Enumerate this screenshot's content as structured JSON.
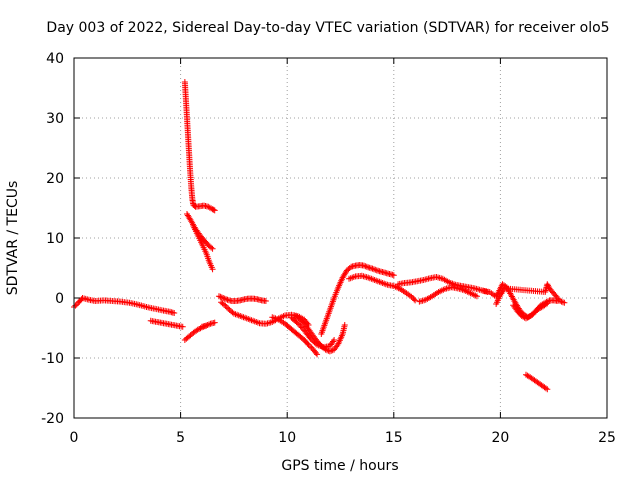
{
  "chart_data": {
    "type": "scatter",
    "title": "Day 003 of 2022, Sidereal Day-to-day VTEC variation (SDTVAR) for receiver olo5",
    "xlabel": "GPS time / hours",
    "ylabel": "SDTVAR / TECUs",
    "xlim": [
      0,
      25
    ],
    "ylim": [
      -20,
      40
    ],
    "xticks": [
      "0",
      "5",
      "10",
      "15",
      "20",
      "25"
    ],
    "yticks": [
      "-20",
      "-10",
      "0",
      "10",
      "20",
      "30",
      "40"
    ],
    "grid": true,
    "marker": "+",
    "marker_color": "#ff0000",
    "series": [
      {
        "name": "early-flat",
        "points": [
          [
            0,
            -1.5
          ],
          [
            0.2,
            -0.8
          ],
          [
            0.4,
            0
          ],
          [
            0.7,
            -0.3
          ],
          [
            1.0,
            -0.5
          ],
          [
            1.4,
            -0.4
          ],
          [
            1.8,
            -0.5
          ],
          [
            2.2,
            -0.6
          ],
          [
            2.6,
            -0.8
          ],
          [
            3.0,
            -1.1
          ],
          [
            3.4,
            -1.5
          ],
          [
            3.8,
            -1.8
          ],
          [
            4.2,
            -2.1
          ],
          [
            4.5,
            -2.3
          ],
          [
            4.7,
            -2.5
          ]
        ]
      },
      {
        "name": "early-lower",
        "points": [
          [
            3.6,
            -3.8
          ],
          [
            3.9,
            -4.0
          ],
          [
            4.2,
            -4.2
          ],
          [
            4.5,
            -4.4
          ],
          [
            4.8,
            -4.6
          ],
          [
            5.1,
            -4.8
          ]
        ]
      },
      {
        "name": "spike-high",
        "points": [
          [
            5.2,
            36
          ],
          [
            5.25,
            33
          ],
          [
            5.3,
            30
          ],
          [
            5.35,
            27
          ],
          [
            5.4,
            24
          ],
          [
            5.45,
            21
          ],
          [
            5.5,
            18.5
          ],
          [
            5.55,
            16.5
          ],
          [
            5.6,
            15.5
          ],
          [
            5.7,
            15.2
          ],
          [
            5.9,
            15.3
          ],
          [
            6.1,
            15.4
          ],
          [
            6.3,
            15.2
          ],
          [
            6.5,
            14.8
          ],
          [
            6.6,
            14.6
          ]
        ]
      },
      {
        "name": "spike-decay-a",
        "points": [
          [
            5.3,
            14
          ],
          [
            5.5,
            12.8
          ],
          [
            5.7,
            11.5
          ],
          [
            5.9,
            10.5
          ],
          [
            6.1,
            9.6
          ],
          [
            6.3,
            8.8
          ],
          [
            6.5,
            8.2
          ]
        ]
      },
      {
        "name": "spike-decay-b",
        "points": [
          [
            5.6,
            12
          ],
          [
            5.8,
            10.5
          ],
          [
            6.0,
            9
          ],
          [
            6.2,
            7.5
          ],
          [
            6.35,
            6
          ],
          [
            6.5,
            4.8
          ]
        ]
      },
      {
        "name": "post-spike-low",
        "points": [
          [
            5.2,
            -7
          ],
          [
            5.4,
            -6.4
          ],
          [
            5.6,
            -5.8
          ],
          [
            5.8,
            -5.3
          ],
          [
            6.0,
            -4.9
          ],
          [
            6.2,
            -4.6
          ],
          [
            6.4,
            -4.3
          ],
          [
            6.6,
            -4.1
          ]
        ]
      },
      {
        "name": "low-dash",
        "points": [
          [
            6.0,
            -4.8
          ],
          [
            6.2,
            -4.6
          ]
        ]
      },
      {
        "name": "seven-eight-a",
        "points": [
          [
            6.8,
            0.3
          ],
          [
            7.0,
            0
          ],
          [
            7.2,
            -0.3
          ],
          [
            7.4,
            -0.5
          ],
          [
            7.6,
            -0.5
          ],
          [
            7.8,
            -0.4
          ],
          [
            8.0,
            -0.2
          ],
          [
            8.2,
            -0.1
          ],
          [
            8.4,
            -0.1
          ],
          [
            8.6,
            -0.2
          ],
          [
            8.8,
            -0.4
          ],
          [
            9.0,
            -0.5
          ]
        ]
      },
      {
        "name": "seven-eight-b",
        "points": [
          [
            6.9,
            -0.7
          ],
          [
            7.1,
            -1.3
          ],
          [
            7.3,
            -2.0
          ],
          [
            7.5,
            -2.6
          ],
          [
            7.8,
            -3.0
          ],
          [
            8.1,
            -3.4
          ],
          [
            8.4,
            -3.8
          ],
          [
            8.7,
            -4.2
          ],
          [
            9.0,
            -4.3
          ],
          [
            9.3,
            -4.0
          ],
          [
            9.6,
            -3.4
          ],
          [
            9.9,
            -2.9
          ],
          [
            10.2,
            -2.8
          ],
          [
            10.5,
            -3.0
          ],
          [
            10.8,
            -3.6
          ],
          [
            11.0,
            -4.5
          ]
        ]
      },
      {
        "name": "nine-eleven-dip",
        "points": [
          [
            9.3,
            -3.2
          ],
          [
            9.6,
            -3.6
          ],
          [
            9.9,
            -4.3
          ],
          [
            10.2,
            -5.2
          ],
          [
            10.5,
            -6.1
          ],
          [
            10.8,
            -7.0
          ],
          [
            11.0,
            -7.8
          ],
          [
            11.2,
            -8.5
          ],
          [
            11.4,
            -9.4
          ]
        ]
      },
      {
        "name": "eleven-twelve-a",
        "points": [
          [
            10.4,
            -3.0
          ],
          [
            10.6,
            -3.5
          ],
          [
            10.8,
            -4.3
          ],
          [
            11.0,
            -5.2
          ],
          [
            11.2,
            -6.2
          ],
          [
            11.4,
            -7.2
          ],
          [
            11.6,
            -8.0
          ],
          [
            11.8,
            -8.6
          ],
          [
            12.0,
            -8.9
          ],
          [
            12.2,
            -8.6
          ],
          [
            12.4,
            -7.6
          ],
          [
            12.6,
            -6.0
          ],
          [
            12.7,
            -4.5
          ]
        ]
      },
      {
        "name": "eleven-twelve-b",
        "points": [
          [
            10.2,
            -3.3
          ],
          [
            10.5,
            -4.2
          ],
          [
            10.8,
            -5.4
          ],
          [
            11.1,
            -6.8
          ],
          [
            11.4,
            -7.8
          ],
          [
            11.7,
            -8.2
          ],
          [
            12.0,
            -8.0
          ],
          [
            12.2,
            -7.0
          ]
        ]
      },
      {
        "name": "recovery-rise",
        "points": [
          [
            11.6,
            -6.0
          ],
          [
            11.8,
            -4.0
          ],
          [
            12.0,
            -2.0
          ],
          [
            12.2,
            0.0
          ],
          [
            12.4,
            1.8
          ],
          [
            12.6,
            3.4
          ],
          [
            12.8,
            4.6
          ],
          [
            13.0,
            5.2
          ],
          [
            13.2,
            5.4
          ],
          [
            13.4,
            5.5
          ],
          [
            13.6,
            5.4
          ],
          [
            13.8,
            5.1
          ],
          [
            14.0,
            4.9
          ],
          [
            14.2,
            4.6
          ],
          [
            14.4,
            4.4
          ],
          [
            14.6,
            4.2
          ],
          [
            14.8,
            4.0
          ],
          [
            15.0,
            3.8
          ]
        ]
      },
      {
        "name": "fourteen-sixteen",
        "points": [
          [
            12.9,
            3.2
          ],
          [
            13.2,
            3.6
          ],
          [
            13.5,
            3.7
          ],
          [
            13.8,
            3.4
          ],
          [
            14.1,
            3.0
          ],
          [
            14.4,
            2.6
          ],
          [
            14.7,
            2.2
          ],
          [
            15.0,
            2.0
          ],
          [
            15.3,
            1.5
          ],
          [
            15.6,
            0.8
          ],
          [
            15.9,
            0.0
          ],
          [
            16.0,
            -0.4
          ]
        ]
      },
      {
        "name": "fifteen-nineteen",
        "points": [
          [
            15.2,
            2.3
          ],
          [
            15.5,
            2.5
          ],
          [
            15.8,
            2.6
          ],
          [
            16.1,
            2.8
          ],
          [
            16.4,
            3.0
          ],
          [
            16.7,
            3.3
          ],
          [
            17.0,
            3.5
          ],
          [
            17.3,
            3.2
          ],
          [
            17.6,
            2.6
          ],
          [
            17.9,
            2.2
          ],
          [
            18.2,
            2.0
          ],
          [
            18.5,
            1.8
          ],
          [
            18.8,
            1.6
          ],
          [
            19.1,
            1.3
          ],
          [
            19.4,
            1.0
          ]
        ]
      },
      {
        "name": "sixteen-eighteen",
        "points": [
          [
            16.2,
            -0.6
          ],
          [
            16.5,
            -0.3
          ],
          [
            16.8,
            0.3
          ],
          [
            17.1,
            1.0
          ],
          [
            17.4,
            1.5
          ],
          [
            17.7,
            1.8
          ],
          [
            18.0,
            1.6
          ],
          [
            18.3,
            1.3
          ],
          [
            18.6,
            0.8
          ],
          [
            18.9,
            0.3
          ]
        ]
      },
      {
        "name": "late-drop",
        "points": [
          [
            19.2,
            1.2
          ],
          [
            19.5,
            1.0
          ],
          [
            19.8,
            0.2
          ],
          [
            20.1,
            2.3
          ],
          [
            20.3,
            1.8
          ],
          [
            20.5,
            0.5
          ],
          [
            20.7,
            -0.8
          ],
          [
            20.9,
            -2.0
          ],
          [
            21.1,
            -2.8
          ],
          [
            21.3,
            -3.2
          ],
          [
            21.5,
            -2.8
          ],
          [
            21.7,
            -2.0
          ],
          [
            21.9,
            -1.2
          ],
          [
            22.1,
            -0.8
          ],
          [
            22.3,
            -0.4
          ],
          [
            22.5,
            -0.4
          ],
          [
            22.7,
            -0.5
          ]
        ]
      },
      {
        "name": "late-drop-b",
        "points": [
          [
            20.6,
            -1.2
          ],
          [
            20.8,
            -2.2
          ],
          [
            21.0,
            -3.0
          ],
          [
            21.2,
            -3.4
          ],
          [
            21.4,
            -3.0
          ],
          [
            21.6,
            -2.4
          ],
          [
            21.8,
            -1.8
          ],
          [
            22.0,
            -1.4
          ],
          [
            22.2,
            -0.9
          ]
        ]
      },
      {
        "name": "late-tail",
        "points": [
          [
            19.8,
            -1.0
          ],
          [
            20.0,
            0.5
          ],
          [
            20.2,
            1.6
          ],
          [
            22.1,
            1.0
          ],
          [
            22.2,
            2.3
          ],
          [
            22.3,
            1.6
          ],
          [
            22.8,
            -0.5
          ],
          [
            23.0,
            -0.8
          ]
        ]
      },
      {
        "name": "late-outlier",
        "points": [
          [
            21.2,
            -12.8
          ],
          [
            21.4,
            -13.2
          ],
          [
            21.6,
            -13.7
          ],
          [
            21.8,
            -14.2
          ],
          [
            22.0,
            -14.7
          ],
          [
            22.2,
            -15.2
          ]
        ]
      }
    ]
  }
}
